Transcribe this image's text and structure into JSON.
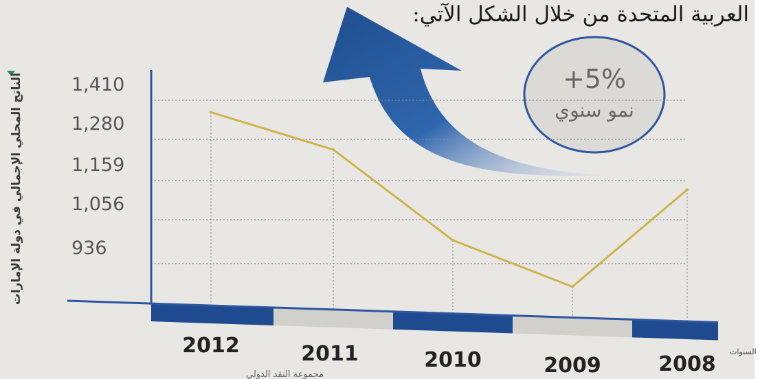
{
  "header": {
    "text": "العربية المتحدة من خلال الشكل الآتي:"
  },
  "growth_badge": {
    "value": "+5%",
    "label": "نمو سنوي"
  },
  "footer": {
    "text": "مجموعة النقد الدولي"
  },
  "colors": {
    "line": "#cdb44a",
    "axis": "#2c56a0",
    "arrow": "#1f4e8f",
    "band_dark": "#1e4b8f",
    "band_light": "#d2d0cb"
  },
  "chart_data": {
    "type": "line",
    "title": "",
    "xlabel": "السنوات",
    "ylabel": "الناتج المحلي الإجمالي في دولة الإمارات",
    "categories": [
      "2012",
      "2011",
      "2010",
      "2009",
      "2008"
    ],
    "y_ticks": [
      1410,
      1280,
      1159,
      1056,
      936
    ],
    "y_tick_labels": [
      "1,410",
      "1,280",
      "1,159",
      "1,056",
      "936"
    ],
    "series": [
      {
        "values": [
          1370,
          1250,
          1000,
          873,
          1135
        ]
      }
    ],
    "ylim": [
      840,
      1450
    ],
    "grid": true,
    "legend": "none"
  }
}
